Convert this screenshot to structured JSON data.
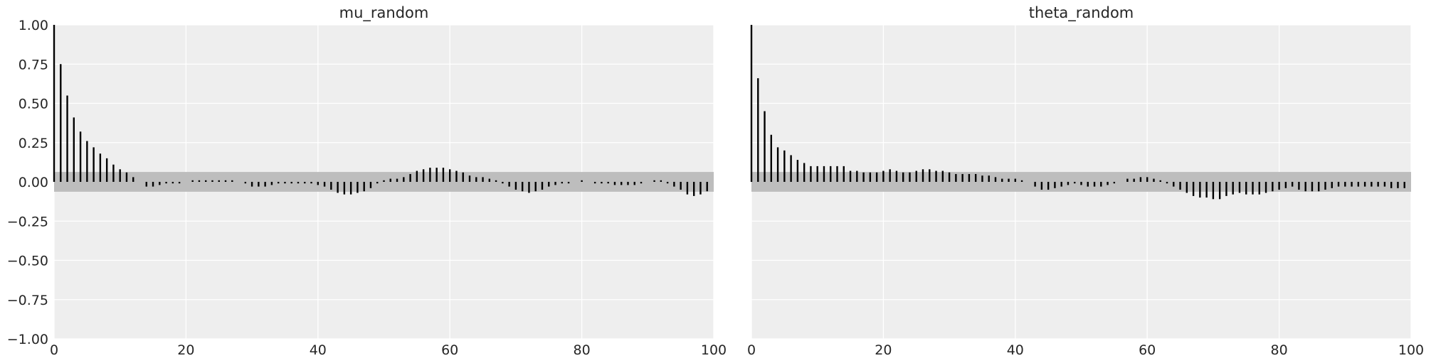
{
  "chart_data": [
    {
      "type": "bar",
      "subtype": "autocorrelation-stem",
      "title": "mu_random",
      "xlabel": "",
      "ylabel": "",
      "xlim": [
        0,
        100
      ],
      "ylim": [
        -1.0,
        1.0
      ],
      "x_ticks": [
        "0",
        "20",
        "40",
        "60",
        "80",
        "100"
      ],
      "y_ticks": [
        "1.00",
        "0.75",
        "0.50",
        "0.25",
        "0.00",
        "−0.25",
        "−0.50",
        "−0.75",
        "−1.00"
      ],
      "grid": true,
      "confidence_band": [
        -0.063,
        0.063
      ],
      "lags": [
        0,
        1,
        2,
        3,
        4,
        5,
        6,
        7,
        8,
        9,
        10,
        11,
        12,
        13,
        14,
        15,
        16,
        17,
        18,
        19,
        20,
        21,
        22,
        23,
        24,
        25,
        26,
        27,
        28,
        29,
        30,
        31,
        32,
        33,
        34,
        35,
        36,
        37,
        38,
        39,
        40,
        41,
        42,
        43,
        44,
        45,
        46,
        47,
        48,
        49,
        50,
        51,
        52,
        53,
        54,
        55,
        56,
        57,
        58,
        59,
        60,
        61,
        62,
        63,
        64,
        65,
        66,
        67,
        68,
        69,
        70,
        71,
        72,
        73,
        74,
        75,
        76,
        77,
        78,
        79,
        80,
        81,
        82,
        83,
        84,
        85,
        86,
        87,
        88,
        89,
        90,
        91,
        92,
        93,
        94,
        95,
        96,
        97,
        98,
        99
      ],
      "values": [
        1.0,
        0.75,
        0.55,
        0.41,
        0.32,
        0.26,
        0.22,
        0.18,
        0.15,
        0.11,
        0.08,
        0.06,
        0.03,
        0.0,
        -0.03,
        -0.03,
        -0.02,
        -0.01,
        -0.01,
        -0.01,
        0.0,
        0.01,
        0.01,
        0.01,
        0.01,
        0.01,
        0.01,
        0.01,
        0.0,
        -0.01,
        -0.03,
        -0.03,
        -0.03,
        -0.02,
        -0.01,
        -0.01,
        -0.01,
        -0.01,
        -0.01,
        -0.01,
        -0.02,
        -0.03,
        -0.05,
        -0.07,
        -0.08,
        -0.08,
        -0.07,
        -0.06,
        -0.04,
        -0.01,
        0.01,
        0.02,
        0.02,
        0.03,
        0.05,
        0.07,
        0.08,
        0.09,
        0.09,
        0.09,
        0.08,
        0.07,
        0.06,
        0.04,
        0.03,
        0.03,
        0.02,
        0.01,
        -0.01,
        -0.03,
        -0.05,
        -0.06,
        -0.07,
        -0.06,
        -0.05,
        -0.03,
        -0.02,
        -0.01,
        -0.01,
        0.0,
        0.01,
        0.0,
        -0.01,
        -0.01,
        -0.01,
        -0.02,
        -0.02,
        -0.02,
        -0.02,
        -0.01,
        0.0,
        0.01,
        0.01,
        -0.01,
        -0.03,
        -0.05,
        -0.08,
        -0.09,
        -0.08,
        -0.06
      ]
    },
    {
      "type": "bar",
      "subtype": "autocorrelation-stem",
      "title": "theta_random",
      "xlabel": "",
      "ylabel": "",
      "xlim": [
        0,
        100
      ],
      "ylim": [
        -1.0,
        1.0
      ],
      "x_ticks": [
        "0",
        "20",
        "40",
        "60",
        "80",
        "100"
      ],
      "y_ticks": [],
      "grid": true,
      "confidence_band": [
        -0.063,
        0.063
      ],
      "lags": [
        0,
        1,
        2,
        3,
        4,
        5,
        6,
        7,
        8,
        9,
        10,
        11,
        12,
        13,
        14,
        15,
        16,
        17,
        18,
        19,
        20,
        21,
        22,
        23,
        24,
        25,
        26,
        27,
        28,
        29,
        30,
        31,
        32,
        33,
        34,
        35,
        36,
        37,
        38,
        39,
        40,
        41,
        42,
        43,
        44,
        45,
        46,
        47,
        48,
        49,
        50,
        51,
        52,
        53,
        54,
        55,
        56,
        57,
        58,
        59,
        60,
        61,
        62,
        63,
        64,
        65,
        66,
        67,
        68,
        69,
        70,
        71,
        72,
        73,
        74,
        75,
        76,
        77,
        78,
        79,
        80,
        81,
        82,
        83,
        84,
        85,
        86,
        87,
        88,
        89,
        90,
        91,
        92,
        93,
        94,
        95,
        96,
        97,
        98,
        99
      ],
      "values": [
        1.0,
        0.66,
        0.45,
        0.3,
        0.22,
        0.2,
        0.17,
        0.14,
        0.12,
        0.1,
        0.1,
        0.1,
        0.1,
        0.1,
        0.1,
        0.07,
        0.07,
        0.06,
        0.06,
        0.06,
        0.07,
        0.08,
        0.07,
        0.06,
        0.06,
        0.07,
        0.08,
        0.08,
        0.07,
        0.07,
        0.06,
        0.05,
        0.05,
        0.05,
        0.05,
        0.04,
        0.04,
        0.03,
        0.02,
        0.02,
        0.02,
        0.01,
        0.0,
        -0.03,
        -0.05,
        -0.05,
        -0.04,
        -0.03,
        -0.02,
        -0.01,
        -0.02,
        -0.03,
        -0.03,
        -0.03,
        -0.02,
        -0.01,
        0.0,
        0.02,
        0.02,
        0.03,
        0.03,
        0.02,
        0.01,
        -0.01,
        -0.03,
        -0.05,
        -0.07,
        -0.09,
        -0.1,
        -0.1,
        -0.11,
        -0.11,
        -0.09,
        -0.08,
        -0.07,
        -0.08,
        -0.08,
        -0.08,
        -0.07,
        -0.06,
        -0.05,
        -0.04,
        -0.03,
        -0.05,
        -0.06,
        -0.06,
        -0.06,
        -0.05,
        -0.04,
        -0.03,
        -0.03,
        -0.03,
        -0.03,
        -0.03,
        -0.03,
        -0.03,
        -0.03,
        -0.04,
        -0.04,
        -0.04
      ]
    }
  ]
}
